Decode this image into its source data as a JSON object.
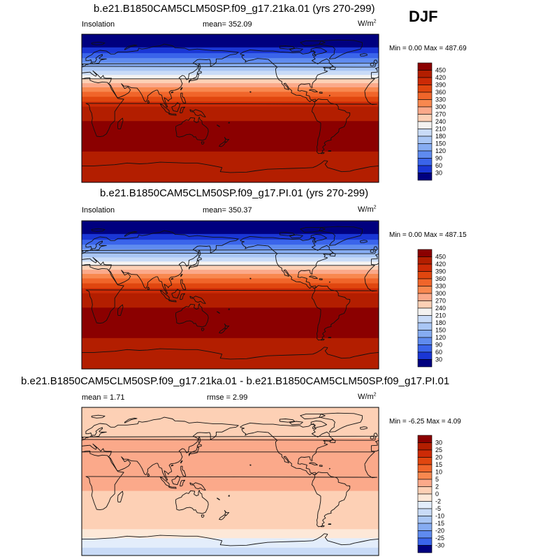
{
  "season": "DJF",
  "unit_base": "W/m",
  "unit_exp": "2",
  "panels": [
    {
      "title": "b.e21.B1850CAM5CLM50SP.f09_g17.21ka.01 (yrs 270-299)",
      "left_label": "Insolation",
      "mean_text": "mean= 352.09",
      "minmax_text": "Min =   0.00 Max = 487.69"
    },
    {
      "title": "b.e21.B1850CAM5CLM50SP.f09_g17.PI.01 (yrs 270-299)",
      "left_label": "Insolation",
      "mean_text": "mean= 350.37",
      "minmax_text": "Min =   0.00 Max = 487.15"
    },
    {
      "title": "b.e21.B1850CAM5CLM50SP.f09_g17.21ka.01 - b.e21.B1850CAM5CLM50SP.f09_g17.PI.01",
      "mean_text": "mean =    1.71",
      "rmse_text": "rmse =    2.99",
      "minmax_text": "Min =  -6.25 Max =   4.09"
    }
  ],
  "colorbars": {
    "abs": {
      "labels": [
        "450",
        "420",
        "390",
        "360",
        "330",
        "300",
        "270",
        "240",
        "210",
        "180",
        "150",
        "120",
        "90",
        "60",
        "30"
      ],
      "colors": [
        "#8b0000",
        "#b31e00",
        "#cc2a06",
        "#e0460f",
        "#f0652a",
        "#f8884f",
        "#fba98a",
        "#fdd0b5",
        "#f4f2f0",
        "#c9dbf7",
        "#a9c6f5",
        "#86acf2",
        "#5f8bef",
        "#3a64ea",
        "#1a36d5",
        "#00007f"
      ]
    },
    "diff": {
      "labels": [
        "30",
        "25",
        "20",
        "15",
        "10",
        "5",
        "2",
        "0",
        "-2",
        "-5",
        "-10",
        "-15",
        "-20",
        "-25",
        "-30"
      ],
      "colors": [
        "#8b0000",
        "#b31e00",
        "#cc2a06",
        "#e0460f",
        "#f0652a",
        "#f8884f",
        "#fba98a",
        "#fdd0b5",
        "#fde8d8",
        "#e3edfb",
        "#c9dbf7",
        "#a9c6f5",
        "#86acf2",
        "#5f8bef",
        "#3a64ea",
        "#00007f"
      ]
    }
  },
  "chart_data": [
    {
      "type": "heatmap",
      "title": "b.e21.B1850CAM5CLM50SP.f09_g17.21ka.01 (yrs 270-299)",
      "variable": "Insolation",
      "units": "W/m2",
      "mean": 352.09,
      "min": 0.0,
      "max": 487.69,
      "levels": [
        30,
        60,
        90,
        120,
        150,
        180,
        210,
        240,
        270,
        300,
        330,
        360,
        390,
        420,
        450
      ],
      "zonal_bands_north_to_south": [
        {
          "lat": 87,
          "value": 0
        },
        {
          "lat": 78,
          "value": 20
        },
        {
          "lat": 70,
          "value": 45
        },
        {
          "lat": 64,
          "value": 80
        },
        {
          "lat": 58,
          "value": 110
        },
        {
          "lat": 53,
          "value": 140
        },
        {
          "lat": 48,
          "value": 170
        },
        {
          "lat": 43,
          "value": 200
        },
        {
          "lat": 38,
          "value": 230
        },
        {
          "lat": 33,
          "value": 260
        },
        {
          "lat": 28,
          "value": 290
        },
        {
          "lat": 23,
          "value": 320
        },
        {
          "lat": 17,
          "value": 350
        },
        {
          "lat": 11,
          "value": 380
        },
        {
          "lat": 5,
          "value": 405
        },
        {
          "lat": -1,
          "value": 430
        },
        {
          "lat": -30,
          "value": 460
        },
        {
          "lat": -75,
          "value": 440
        }
      ]
    },
    {
      "type": "heatmap",
      "title": "b.e21.B1850CAM5CLM50SP.f09_g17.PI.01 (yrs 270-299)",
      "variable": "Insolation",
      "units": "W/m2",
      "mean": 350.37,
      "min": 0.0,
      "max": 487.15,
      "levels": [
        30,
        60,
        90,
        120,
        150,
        180,
        210,
        240,
        270,
        300,
        330,
        360,
        390,
        420,
        450
      ],
      "zonal_bands_north_to_south": [
        {
          "lat": 87,
          "value": 0
        },
        {
          "lat": 78,
          "value": 20
        },
        {
          "lat": 70,
          "value": 45
        },
        {
          "lat": 64,
          "value": 80
        },
        {
          "lat": 58,
          "value": 110
        },
        {
          "lat": 53,
          "value": 140
        },
        {
          "lat": 48,
          "value": 170
        },
        {
          "lat": 43,
          "value": 200
        },
        {
          "lat": 38,
          "value": 230
        },
        {
          "lat": 33,
          "value": 260
        },
        {
          "lat": 28,
          "value": 290
        },
        {
          "lat": 23,
          "value": 320
        },
        {
          "lat": 17,
          "value": 350
        },
        {
          "lat": 11,
          "value": 380
        },
        {
          "lat": 5,
          "value": 405
        },
        {
          "lat": -1,
          "value": 430
        },
        {
          "lat": -30,
          "value": 460
        },
        {
          "lat": -75,
          "value": 440
        }
      ]
    },
    {
      "type": "heatmap",
      "title": "b.e21.B1850CAM5CLM50SP.f09_g17.21ka.01 - b.e21.B1850CAM5CLM50SP.f09_g17.PI.01",
      "units": "W/m2",
      "mean": 1.71,
      "rmse": 2.99,
      "min": -6.25,
      "max": 4.09,
      "levels": [
        -30,
        -25,
        -20,
        -15,
        -10,
        -5,
        -2,
        0,
        2,
        5,
        10,
        15,
        20,
        25,
        30
      ],
      "zonal_bands_north_to_south": [
        {
          "lat": 75,
          "value": 1
        },
        {
          "lat": 30,
          "value": 3
        },
        {
          "lat": -53,
          "value": 1
        },
        {
          "lat": -63,
          "value": -1
        },
        {
          "lat": -75,
          "value": -4
        },
        {
          "lat": -86,
          "value": -6
        }
      ]
    }
  ]
}
